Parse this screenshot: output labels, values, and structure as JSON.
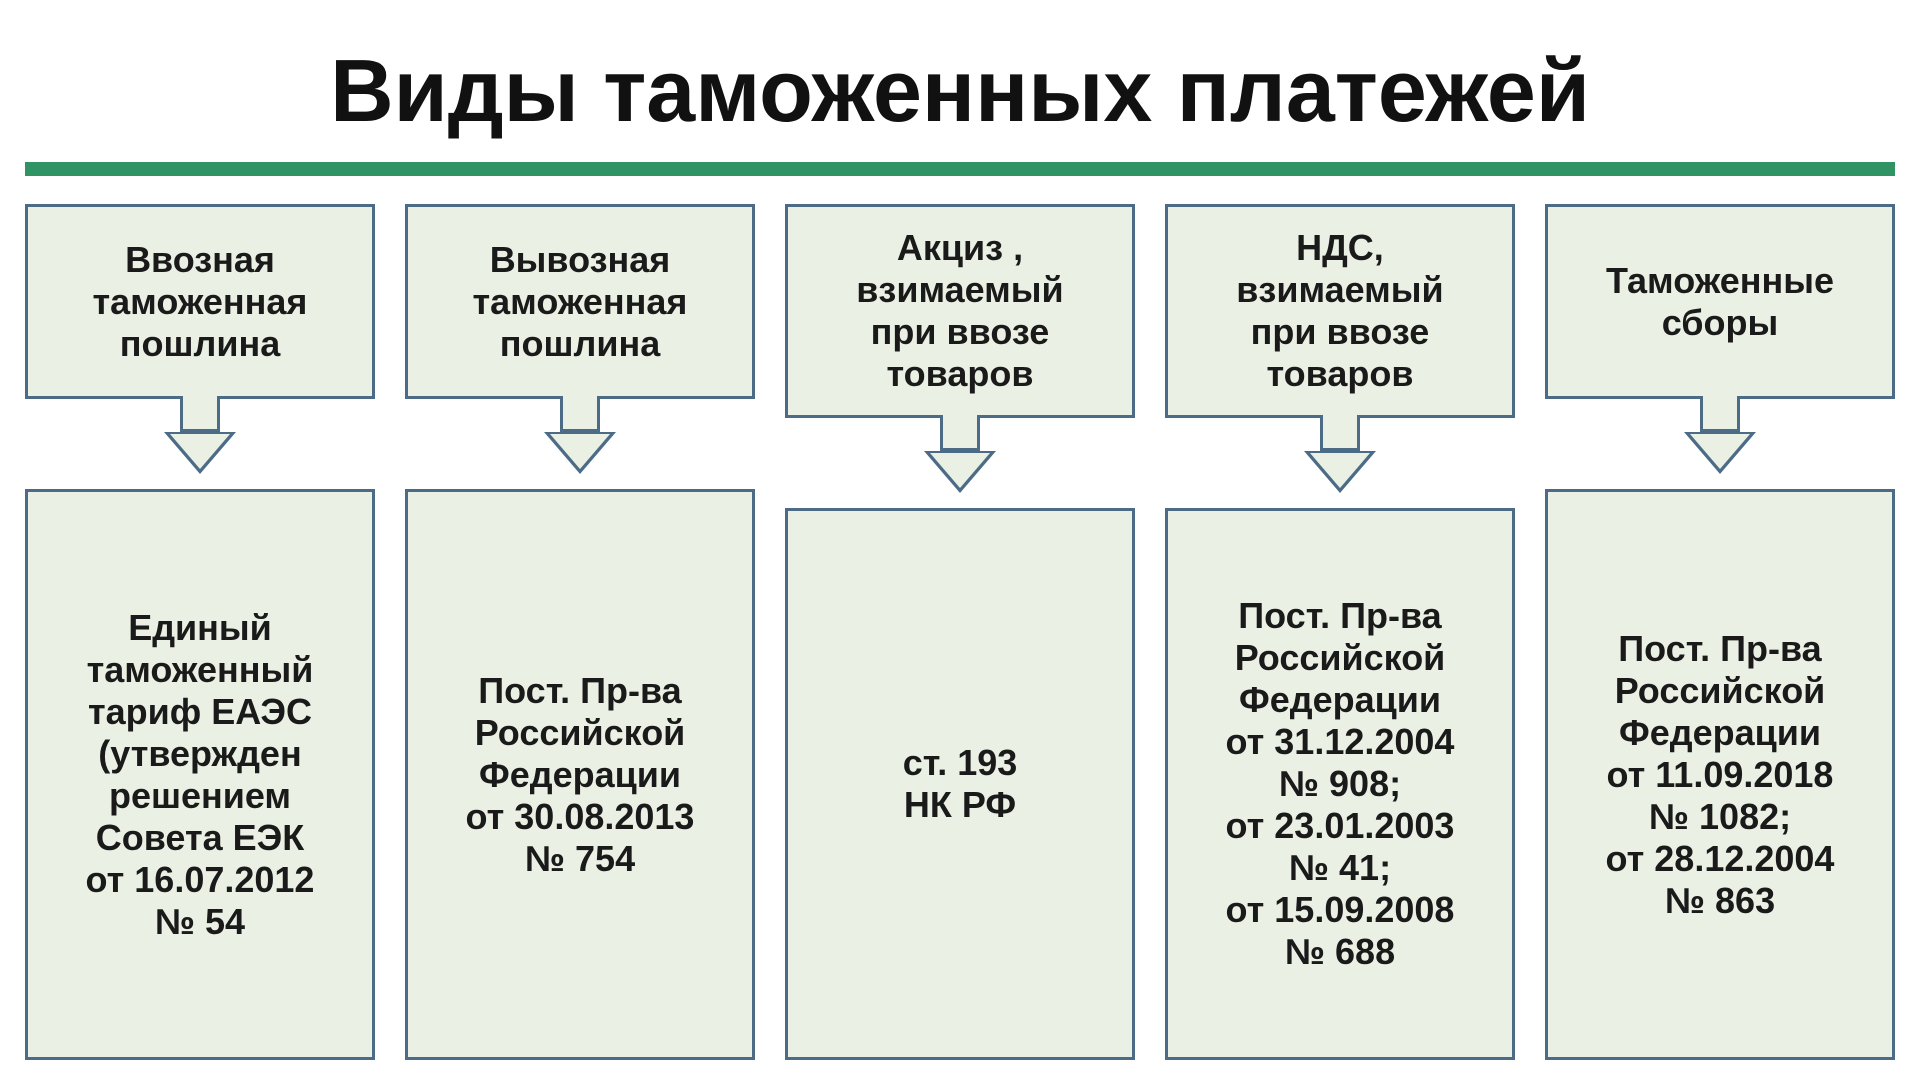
{
  "title": "Виды таможенных платежей",
  "title_fontsize": 88,
  "divider_color": "#2f9364",
  "divider_height": 14,
  "box_border_color": "#4b6b86",
  "box_fill_color": "#eaf1e4",
  "header_fontsize": 36,
  "detail_fontsize": 36,
  "arrow_fill": "#eaf1e4",
  "arrow_border": "#4b6b86",
  "items": [
    {
      "header": "Ввозная\nтаможенная\nпошлина",
      "detail": "Единый\nтаможенный\nтариф ЕАЭС\n(утвержден\nрешением\nСовета ЕЭК\nот 16.07.2012\n№ 54"
    },
    {
      "header": "Вывозная\nтаможенная\nпошлина",
      "detail": "Пост. Пр-ва\nРоссийской\nФедерации\nот 30.08.2013\n№ 754"
    },
    {
      "header": "Акциз ,\nвзимаемый\nпри ввозе\nтоваров",
      "detail": "ст. 193\nНК РФ"
    },
    {
      "header": "НДС,\nвзимаемый\nпри ввозе\nтоваров",
      "detail": "Пост. Пр-ва\nРоссийской\nФедерации\nот 31.12.2004\n№ 908;\nот 23.01.2003\n№ 41;\nот 15.09.2008\n№ 688"
    },
    {
      "header": "Таможенные\nсборы",
      "detail": "Пост. Пр-ва\nРоссийской\nФедерации\nот 11.09.2018\n№ 1082;\nот 28.12.2004\n№ 863"
    }
  ]
}
